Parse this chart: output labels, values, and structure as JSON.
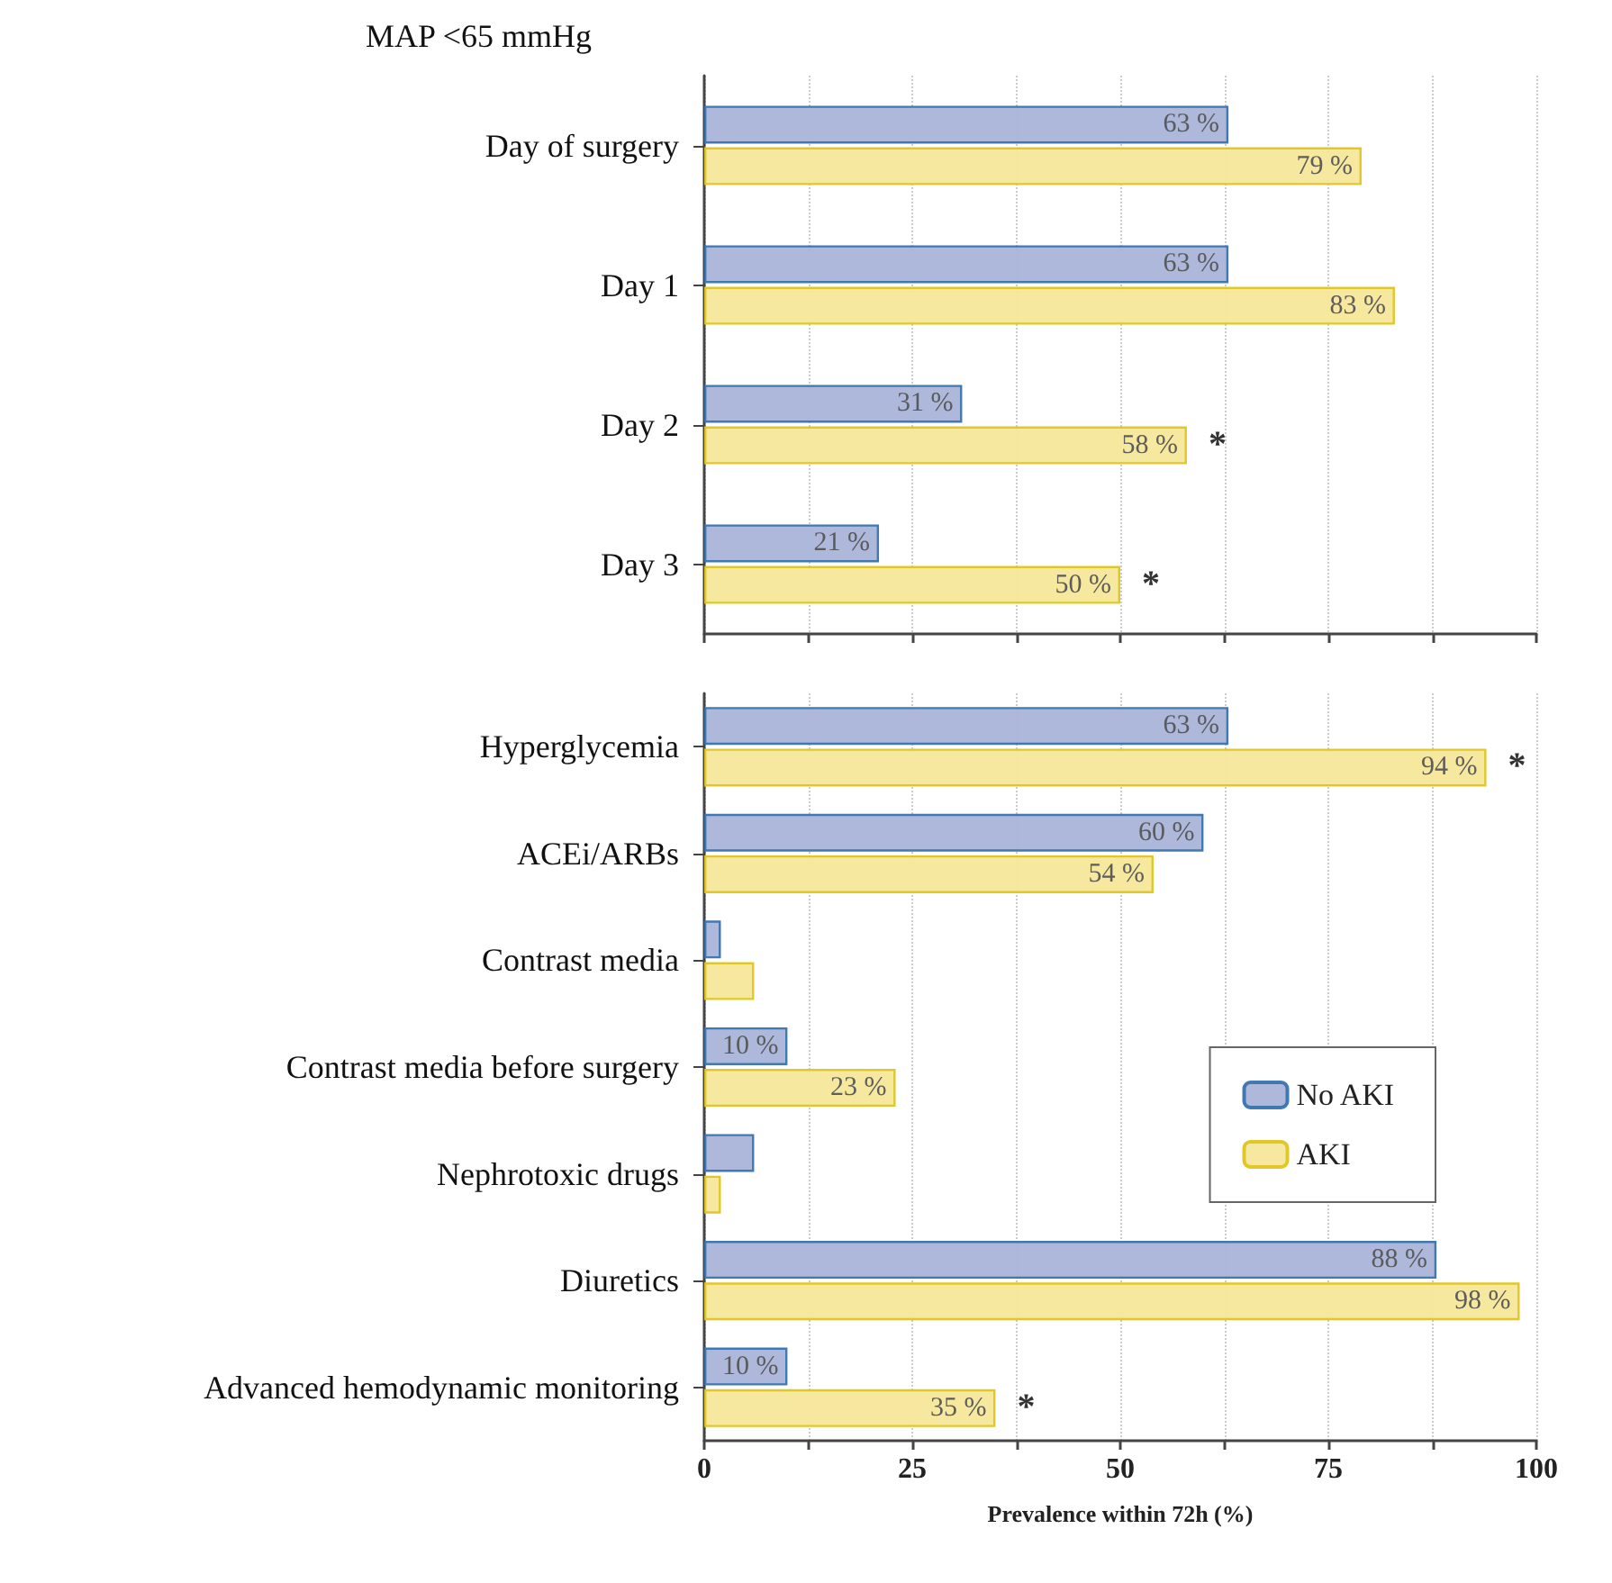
{
  "chart_data": [
    {
      "type": "bar",
      "orientation": "horizontal",
      "title": "MAP <65 mmHg",
      "categories": [
        "Day of surgery",
        "Day 1",
        "Day 2",
        "Day 3"
      ],
      "series": [
        {
          "color": "#a9b4d9",
          "values": [
            63,
            63,
            31,
            21
          ],
          "value_labels": [
            "63 %",
            "63 %",
            "31 %",
            "21 %"
          ]
        },
        {
          "color": "#f7e79a",
          "values": [
            79,
            83,
            58,
            50
          ],
          "value_labels": [
            "79 %",
            "83 %",
            "58 %",
            "50 %"
          ]
        }
      ],
      "xlim": [
        0,
        100
      ],
      "xticks": [
        0,
        {
          "value": 12.5,
          "label": null
        },
        25,
        {
          "value": 37.5,
          "label": null
        },
        50,
        {
          "value": 62.5,
          "label": null
        },
        75,
        {
          "value": 87.5,
          "label": null
        },
        100
      ],
      "tick_labels": "y",
      "grid": "x",
      "legend": false,
      "annotations": [
        {
          "text": "*",
          "x": 58,
          "y": "Day 2"
        },
        {
          "text": "*",
          "x": 50,
          "y": "Day 3"
        }
      ]
    },
    {
      "type": "bar",
      "orientation": "horizontal",
      "xlabel": "Prevalence within 72h (%)",
      "categories": [
        "Hyperglycemia",
        "ACEi/ARBs",
        "Contrast media",
        "Contrast media before surgery",
        "Nephrotoxic drugs",
        "Diuretics",
        "Advanced hemodynamic monitoring"
      ],
      "series": [
        {
          "name": "No AKI",
          "color": "#a9b4d9",
          "values": [
            63,
            60,
            2,
            10,
            6,
            88,
            10
          ],
          "value_labels": [
            "63 %",
            "60 %",
            null,
            "10 %",
            null,
            "88 %",
            "10 %"
          ]
        },
        {
          "name": "AKI",
          "color": "#f7e79a",
          "values": [
            94,
            54,
            6,
            23,
            2,
            98,
            35
          ],
          "value_labels": [
            "94 %",
            "54 %",
            null,
            "23 %",
            null,
            "98 %",
            "35 %"
          ]
        }
      ],
      "xlim": [
        0,
        100
      ],
      "xticks": [
        0,
        {
          "value": 12.5,
          "label": null
        },
        25,
        {
          "value": 37.5,
          "label": null
        },
        50,
        {
          "value": 62.5,
          "label": null
        },
        75,
        {
          "value": 87.5,
          "label": null
        },
        100
      ],
      "grid": "x",
      "legend": "right",
      "annotations": [
        {
          "text": "*",
          "x": 94,
          "y": "Hyperglycemia"
        },
        {
          "text": "*",
          "x": 35,
          "y": "Advanced hemodynamic monitoring"
        }
      ]
    }
  ]
}
